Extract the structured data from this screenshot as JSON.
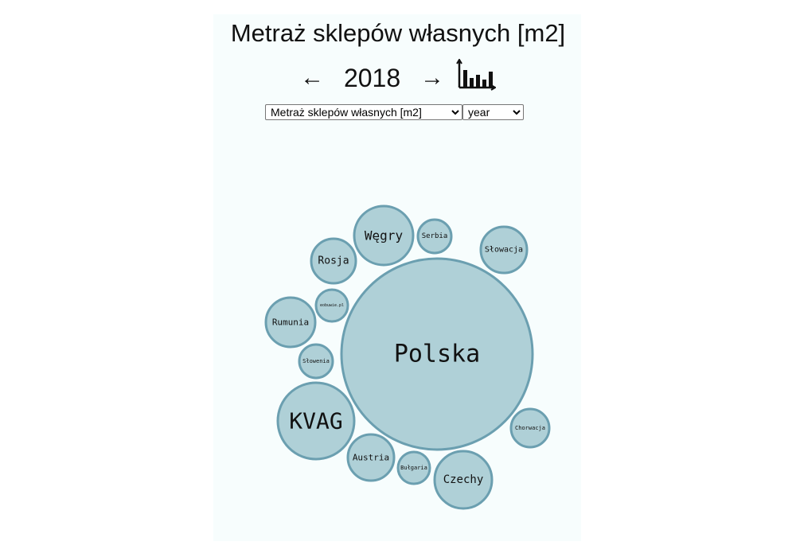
{
  "title": "Metraż sklepów własnych [m2]",
  "nav": {
    "prev_arrow": "←",
    "year": "2018",
    "next_arrow": "→",
    "chart_icon": "bar-chart-icon"
  },
  "selects": {
    "metric": {
      "selected": "Metraż sklepów własnych [m2]",
      "options": [
        "Metraż sklepów własnych [m2]"
      ]
    },
    "period": {
      "selected": "year",
      "options": [
        "year"
      ]
    }
  },
  "colors": {
    "bubble_fill": "#afd0d7",
    "bubble_stroke": "#6b9fb0",
    "panel_bg": "#f7fdfd"
  },
  "chart_data": {
    "type": "bubble",
    "title": "Metraż sklepów własnych [m2]",
    "year": "2018",
    "items": [
      {
        "label": "Polska"
      },
      {
        "label": "KVAG"
      },
      {
        "label": "Węgry"
      },
      {
        "label": "Czechy"
      },
      {
        "label": "Rumunia"
      },
      {
        "label": "Austria"
      },
      {
        "label": "Rosja"
      },
      {
        "label": "Słowacja"
      },
      {
        "label": "Chorwacja"
      },
      {
        "label": "Słowenia"
      },
      {
        "label": "Serbia"
      },
      {
        "label": "Bułgaria"
      },
      {
        "label": "eobuwie.pl"
      }
    ]
  }
}
